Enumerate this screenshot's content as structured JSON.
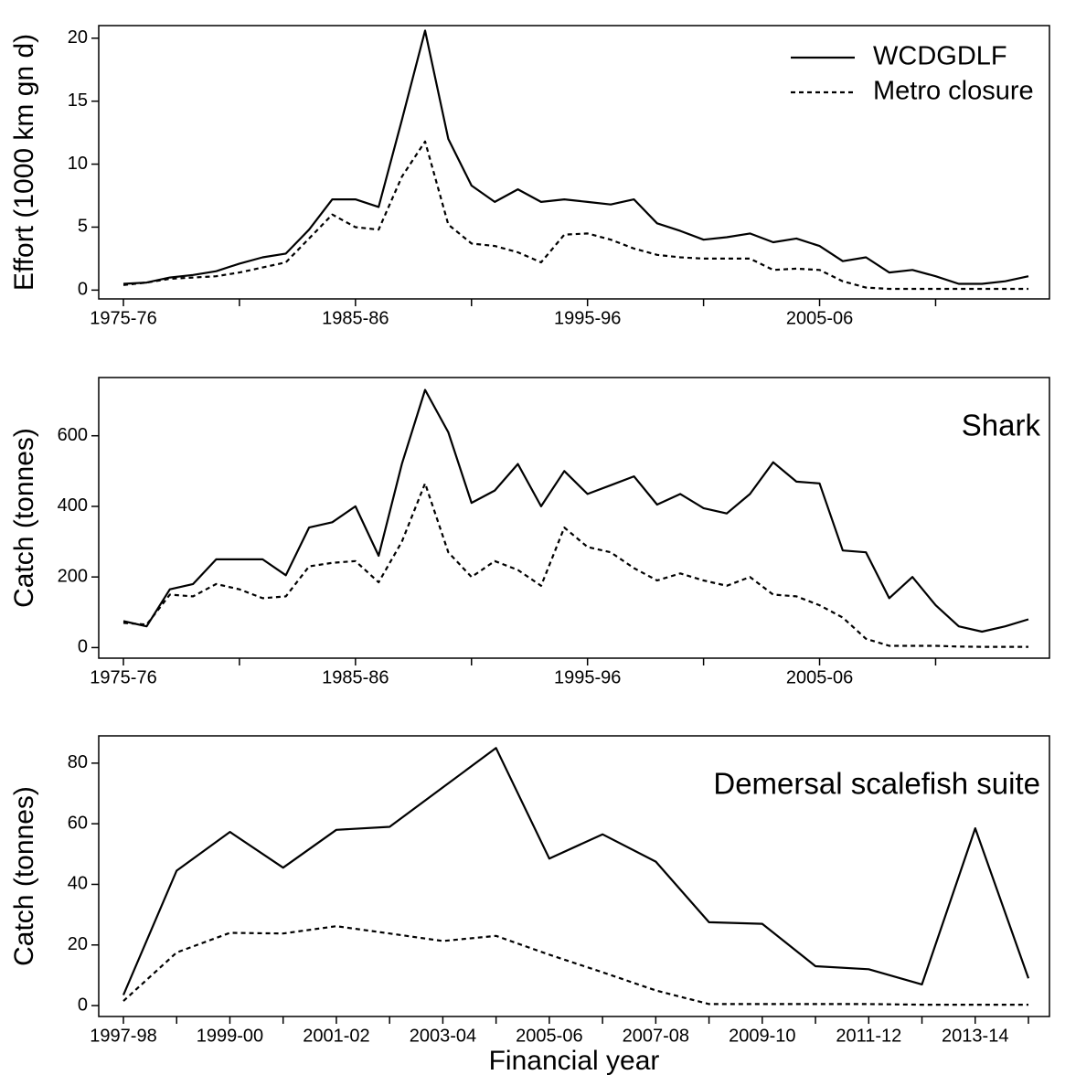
{
  "chart_data": [
    {
      "type": "line",
      "ylabel": "Effort (1000 km gn d)",
      "categories": [
        "1975-76",
        null,
        null,
        null,
        null,
        null,
        null,
        null,
        null,
        null,
        "1985-86",
        null,
        null,
        null,
        null,
        null,
        null,
        null,
        null,
        null,
        "1995-96",
        null,
        null,
        null,
        null,
        null,
        null,
        null,
        null,
        null,
        "2005-06",
        null,
        null,
        null,
        null,
        null,
        null,
        null,
        null,
        null
      ],
      "series": [
        {
          "name": "WCDGDLF",
          "color": "#000000",
          "linestyle": "solid",
          "values": [
            0.5,
            0.6,
            1.0,
            1.2,
            1.5,
            2.1,
            2.6,
            2.9,
            4.8,
            7.2,
            7.2,
            6.6,
            13.5,
            20.6,
            12.0,
            8.3,
            7.0,
            8.0,
            7.0,
            7.2,
            7.0,
            6.8,
            7.2,
            5.3,
            4.7,
            4.0,
            4.2,
            4.5,
            3.8,
            4.1,
            3.5,
            2.3,
            2.6,
            1.4,
            1.6,
            1.1,
            0.5,
            0.5,
            0.7,
            1.1
          ]
        },
        {
          "name": "Metro closure",
          "color": "#000000",
          "linestyle": "dashed",
          "values": [
            0.4,
            0.6,
            0.9,
            1.0,
            1.1,
            1.4,
            1.8,
            2.2,
            4.1,
            6.0,
            5.0,
            4.8,
            9.0,
            11.8,
            5.2,
            3.7,
            3.5,
            3.0,
            2.2,
            4.4,
            4.5,
            4.0,
            3.3,
            2.8,
            2.6,
            2.5,
            2.5,
            2.5,
            1.6,
            1.7,
            1.6,
            0.7,
            0.2,
            0.1,
            0.1,
            0.1,
            0.1,
            0.1,
            0.1,
            0.1
          ]
        }
      ],
      "ylim": [
        -0.7,
        21
      ],
      "yticks": [
        0,
        5,
        10,
        15,
        20
      ],
      "legend": "upper right",
      "grid": false
    },
    {
      "type": "line",
      "ylabel": "Catch (tonnes)",
      "annotation": "Shark",
      "categories": [
        "1975-76",
        null,
        null,
        null,
        null,
        null,
        null,
        null,
        null,
        null,
        "1985-86",
        null,
        null,
        null,
        null,
        null,
        null,
        null,
        null,
        null,
        "1995-96",
        null,
        null,
        null,
        null,
        null,
        null,
        null,
        null,
        null,
        "2005-06",
        null,
        null,
        null,
        null,
        null,
        null,
        null,
        null,
        null
      ],
      "series": [
        {
          "color": "#000000",
          "linestyle": "solid",
          "values": [
            75,
            60,
            165,
            180,
            250,
            250,
            250,
            205,
            340,
            355,
            400,
            260,
            520,
            730,
            610,
            410,
            445,
            520,
            400,
            500,
            435,
            460,
            485,
            405,
            435,
            395,
            380,
            435,
            525,
            470,
            465,
            275,
            270,
            140,
            200,
            120,
            60,
            45,
            60,
            80
          ]
        },
        {
          "color": "#000000",
          "linestyle": "dashed",
          "values": [
            70,
            65,
            150,
            145,
            180,
            165,
            140,
            145,
            230,
            240,
            245,
            185,
            300,
            465,
            270,
            200,
            245,
            220,
            175,
            340,
            285,
            270,
            225,
            190,
            210,
            190,
            175,
            200,
            150,
            145,
            120,
            85,
            25,
            5,
            5,
            5,
            3,
            2,
            2,
            2
          ]
        }
      ],
      "ylim": [
        -30,
        765
      ],
      "yticks": [
        0,
        200,
        400,
        600
      ],
      "grid": false
    },
    {
      "type": "line",
      "ylabel": "Catch (tonnes)",
      "xlabel": "Financial year",
      "annotation": "Demersal scalefish suite",
      "categories": [
        "1997-98",
        null,
        "1999-00",
        null,
        "2001-02",
        null,
        "2003-04",
        null,
        "2005-06",
        null,
        "2007-08",
        null,
        "2009-10",
        null,
        "2011-12",
        null,
        "2013-14",
        null
      ],
      "series": [
        {
          "color": "#000000",
          "linestyle": "solid",
          "values": [
            3.5,
            44.5,
            57.3,
            45.5,
            58,
            59,
            72,
            85,
            48.5,
            56.5,
            47.5,
            27.5,
            27,
            13,
            12,
            7,
            58.5,
            9
          ]
        },
        {
          "color": "#000000",
          "linestyle": "dashed",
          "values": [
            1.5,
            17.5,
            24,
            23.8,
            26.2,
            23.8,
            21.3,
            23,
            16.8,
            11,
            5,
            0.5,
            0.5,
            0.5,
            0.5,
            0.3,
            0.3,
            0.3
          ]
        }
      ],
      "ylim": [
        -3.6,
        89
      ],
      "yticks": [
        0,
        20,
        40,
        60,
        80
      ],
      "grid": false
    }
  ]
}
